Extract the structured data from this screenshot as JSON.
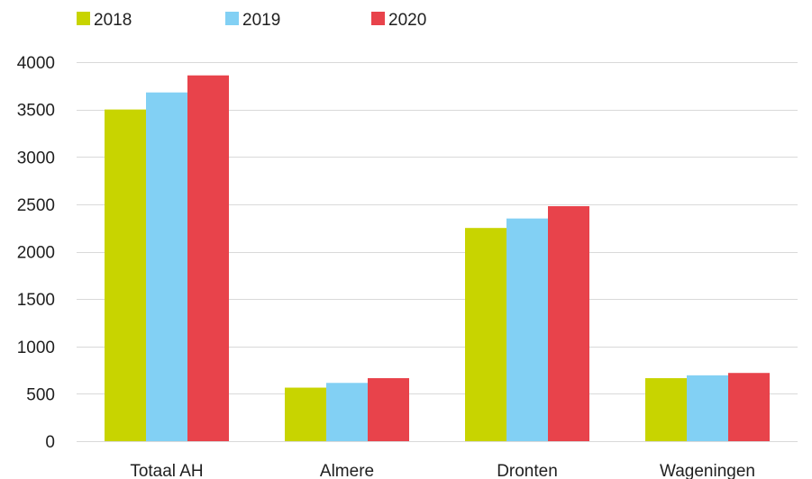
{
  "chart_data": {
    "type": "bar",
    "title": "",
    "xlabel": "",
    "ylabel": "",
    "categories": [
      "Totaal AH",
      "Almere",
      "Dronten",
      "Wageningen"
    ],
    "series": [
      {
        "name": "2018",
        "color": "#c8d400",
        "values": [
          3500,
          565,
          2250,
          665
        ]
      },
      {
        "name": "2019",
        "color": "#82d0f4",
        "values": [
          3680,
          615,
          2350,
          695
        ]
      },
      {
        "name": "2020",
        "color": "#e8434b",
        "values": [
          3860,
          665,
          2480,
          720
        ]
      }
    ],
    "ylim": [
      0,
      4000
    ],
    "yticks": [
      0,
      500,
      1000,
      1500,
      2000,
      2500,
      3000,
      3500,
      4000
    ],
    "grid": true,
    "legend_position": "top-left"
  }
}
